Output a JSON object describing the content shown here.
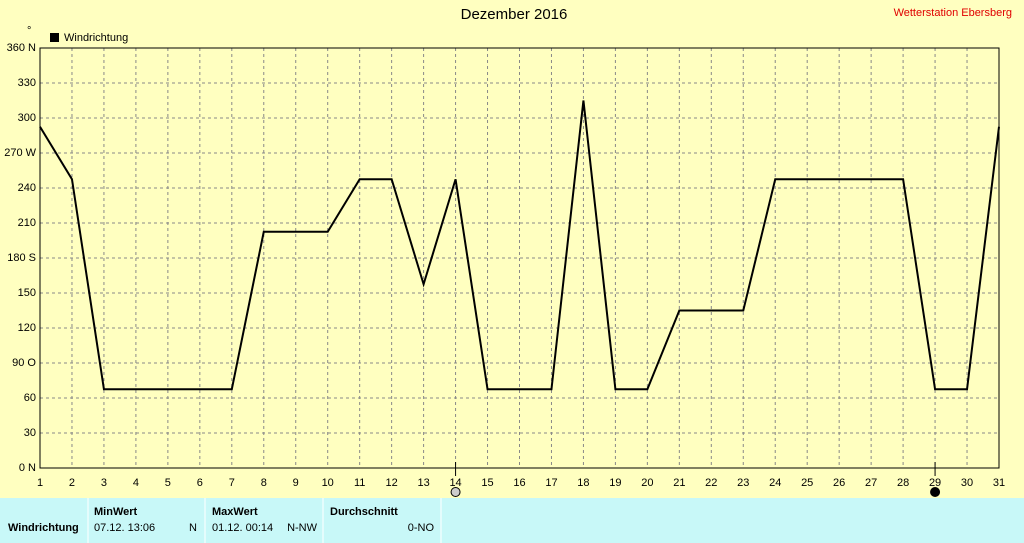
{
  "chart_data": {
    "type": "line",
    "title": "Dezember 2016",
    "station": "Wetterstation Ebersberg",
    "y_unit": "°",
    "x": [
      1,
      2,
      3,
      4,
      5,
      6,
      7,
      8,
      9,
      10,
      11,
      12,
      13,
      14,
      15,
      16,
      17,
      18,
      19,
      20,
      21,
      22,
      23,
      24,
      25,
      26,
      27,
      28,
      29,
      30,
      31
    ],
    "series": [
      {
        "name": "Windrichtung",
        "color": "#000000",
        "values": [
          292.5,
          247.5,
          67.5,
          67.5,
          67.5,
          67.5,
          67.5,
          202.5,
          202.5,
          202.5,
          247.5,
          247.5,
          157.5,
          247.5,
          67.5,
          67.5,
          67.5,
          315,
          67.5,
          67.5,
          135,
          135,
          135,
          247.5,
          247.5,
          247.5,
          247.5,
          247.5,
          67.5,
          67.5,
          292.5
        ]
      }
    ],
    "xlim": [
      1,
      31
    ],
    "xticks": [
      1,
      2,
      3,
      4,
      5,
      6,
      7,
      8,
      9,
      10,
      11,
      12,
      13,
      14,
      15,
      16,
      17,
      18,
      19,
      20,
      21,
      22,
      23,
      24,
      25,
      26,
      27,
      28,
      29,
      30,
      31
    ],
    "ylim": [
      0,
      360
    ],
    "yticks": [
      {
        "value": 0,
        "label": "0  N"
      },
      30,
      60,
      {
        "value": 90,
        "label": "90  O"
      },
      120,
      150,
      {
        "value": 180,
        "label": "180 S"
      },
      210,
      240,
      {
        "value": 270,
        "label": "270 W"
      },
      300,
      330,
      {
        "value": 360,
        "label": "360 N"
      }
    ],
    "grid": true
  },
  "table": {
    "row_label": "Windrichtung",
    "columns": [
      {
        "header": "MinWert",
        "value": "07.12.  13:06",
        "dir": "N"
      },
      {
        "header": "MaxWert",
        "value": "01.12.  00:14",
        "dir": "N-NW"
      },
      {
        "header": "Durchschnitt",
        "dir": "0-NO"
      }
    ]
  }
}
